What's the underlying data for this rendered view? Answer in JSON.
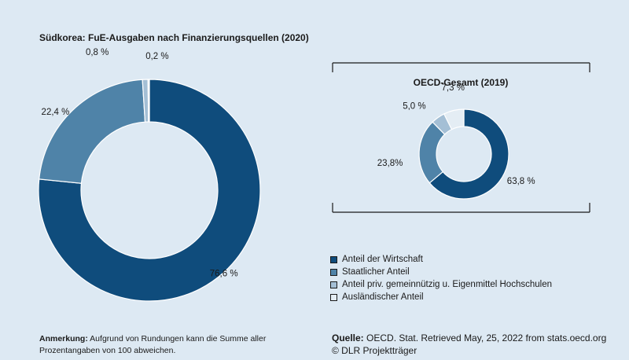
{
  "chart_data": [
    {
      "type": "donut",
      "title": "Südkorea: FuE-Ausgaben nach Finanzierungsquellen (2020)",
      "slices": [
        {
          "name": "Anteil der Wirtschaft",
          "value": 76.6,
          "label": "76,6 %",
          "color": "#0f4c7c"
        },
        {
          "name": "Staatlicher Anteil",
          "value": 22.4,
          "label": "22,4 %",
          "color": "#4f83a8"
        },
        {
          "name": "Anteil priv. gemeinnützig u. Eigenmittel Hochschulen",
          "value": 0.8,
          "label": "0,8 %",
          "color": "#a4bfd5"
        },
        {
          "name": "Ausländischer Anteil",
          "value": 0.2,
          "label": "0,2 %",
          "color": "#e4edf4"
        }
      ]
    },
    {
      "type": "donut",
      "title": "OECD-Gesamt (2019)",
      "slices": [
        {
          "name": "Anteil der Wirtschaft",
          "value": 63.8,
          "label": "63,8 %",
          "color": "#0f4c7c"
        },
        {
          "name": "Staatlicher Anteil",
          "value": 23.8,
          "label": "23,8%",
          "color": "#4f83a8"
        },
        {
          "name": "Anteil priv. gemeinnützig u. Eigenmittel Hochschulen",
          "value": 5.0,
          "label": "5,0 %",
          "color": "#a4bfd5"
        },
        {
          "name": "Ausländischer Anteil",
          "value": 7.3,
          "label": "7,3 %",
          "color": "#e4edf4"
        }
      ]
    }
  ],
  "legend": [
    {
      "label": "Anteil der Wirtschaft",
      "color": "#0f4c7c"
    },
    {
      "label": "Staatlicher Anteil",
      "color": "#4f83a8"
    },
    {
      "label": "Anteil priv. gemeinnützig u. Eigenmittel Hochschulen",
      "color": "#a4bfd5"
    },
    {
      "label": "Ausländischer Anteil",
      "color": "#e4edf4"
    }
  ],
  "notes": {
    "left_bold": "Anmerkung:",
    "left_text": " Aufgrund von Rundungen kann die Summe aller Prozentangaben von 100 abweichen.",
    "right_bold": "Quelle:",
    "right_text": " OECD. Stat. Retrieved May, 25, 2022 from stats.oecd.org",
    "copyright": "© DLR Projektträger"
  }
}
